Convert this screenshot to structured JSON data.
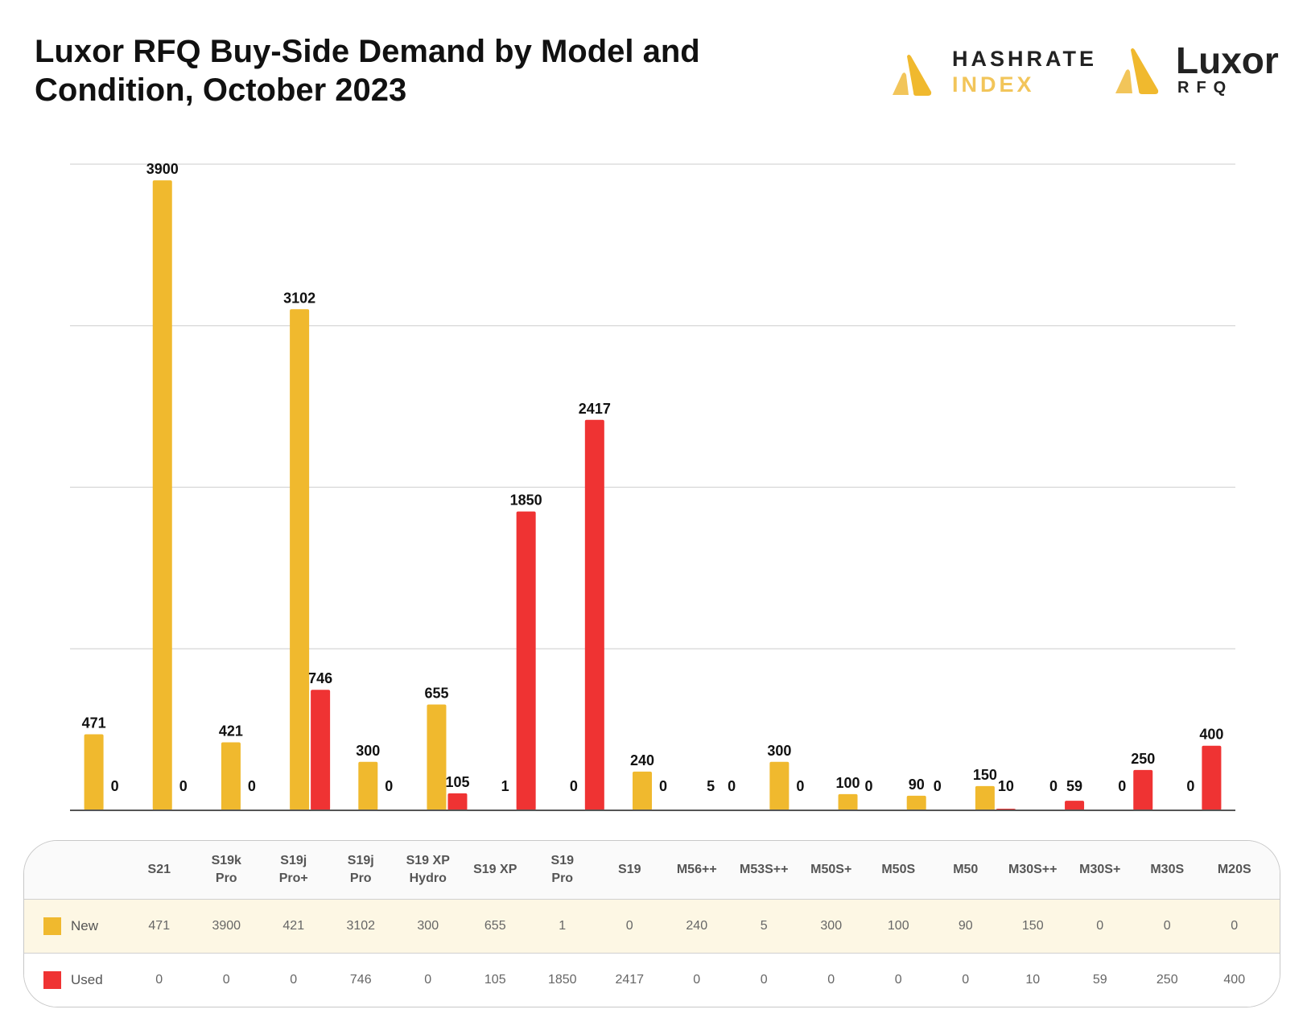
{
  "title": "Luxor RFQ Buy-Side Demand by Model and Condition, October 2023",
  "logos": {
    "hashrate_index": {
      "line1": "HASHRATE",
      "line2": "INDEX"
    },
    "luxor_rfq": {
      "line1": "Luxor",
      "line2": "RFQ"
    }
  },
  "colors": {
    "New": "#F0B92E",
    "Used": "#EF3333"
  },
  "chart_data": {
    "type": "bar",
    "title": "Luxor RFQ Buy-Side Demand by Model and Condition, October 2023",
    "categories": [
      "S21",
      "S19k Pro",
      "S19j Pro+",
      "S19j Pro",
      "S19 XP Hydro",
      "S19 XP",
      "S19 Pro",
      "S19",
      "M56++",
      "M53S++",
      "M50S+",
      "M50S",
      "M50",
      "M30S++",
      "M30S+",
      "M30S",
      "M20S"
    ],
    "series": [
      {
        "name": "New",
        "values": [
          471,
          3900,
          421,
          3102,
          300,
          655,
          1,
          0,
          240,
          5,
          300,
          100,
          90,
          150,
          0,
          0,
          0
        ]
      },
      {
        "name": "Used",
        "values": [
          0,
          0,
          0,
          746,
          0,
          105,
          1850,
          2417,
          0,
          0,
          0,
          0,
          0,
          10,
          59,
          250,
          400
        ]
      }
    ],
    "ylim": [
      0,
      4000
    ],
    "gridlines": [
      1000,
      2000,
      3000,
      4000
    ],
    "grid": true,
    "y_tick_labels_shown": false,
    "data_labels": true,
    "legend": "data table below chart"
  }
}
